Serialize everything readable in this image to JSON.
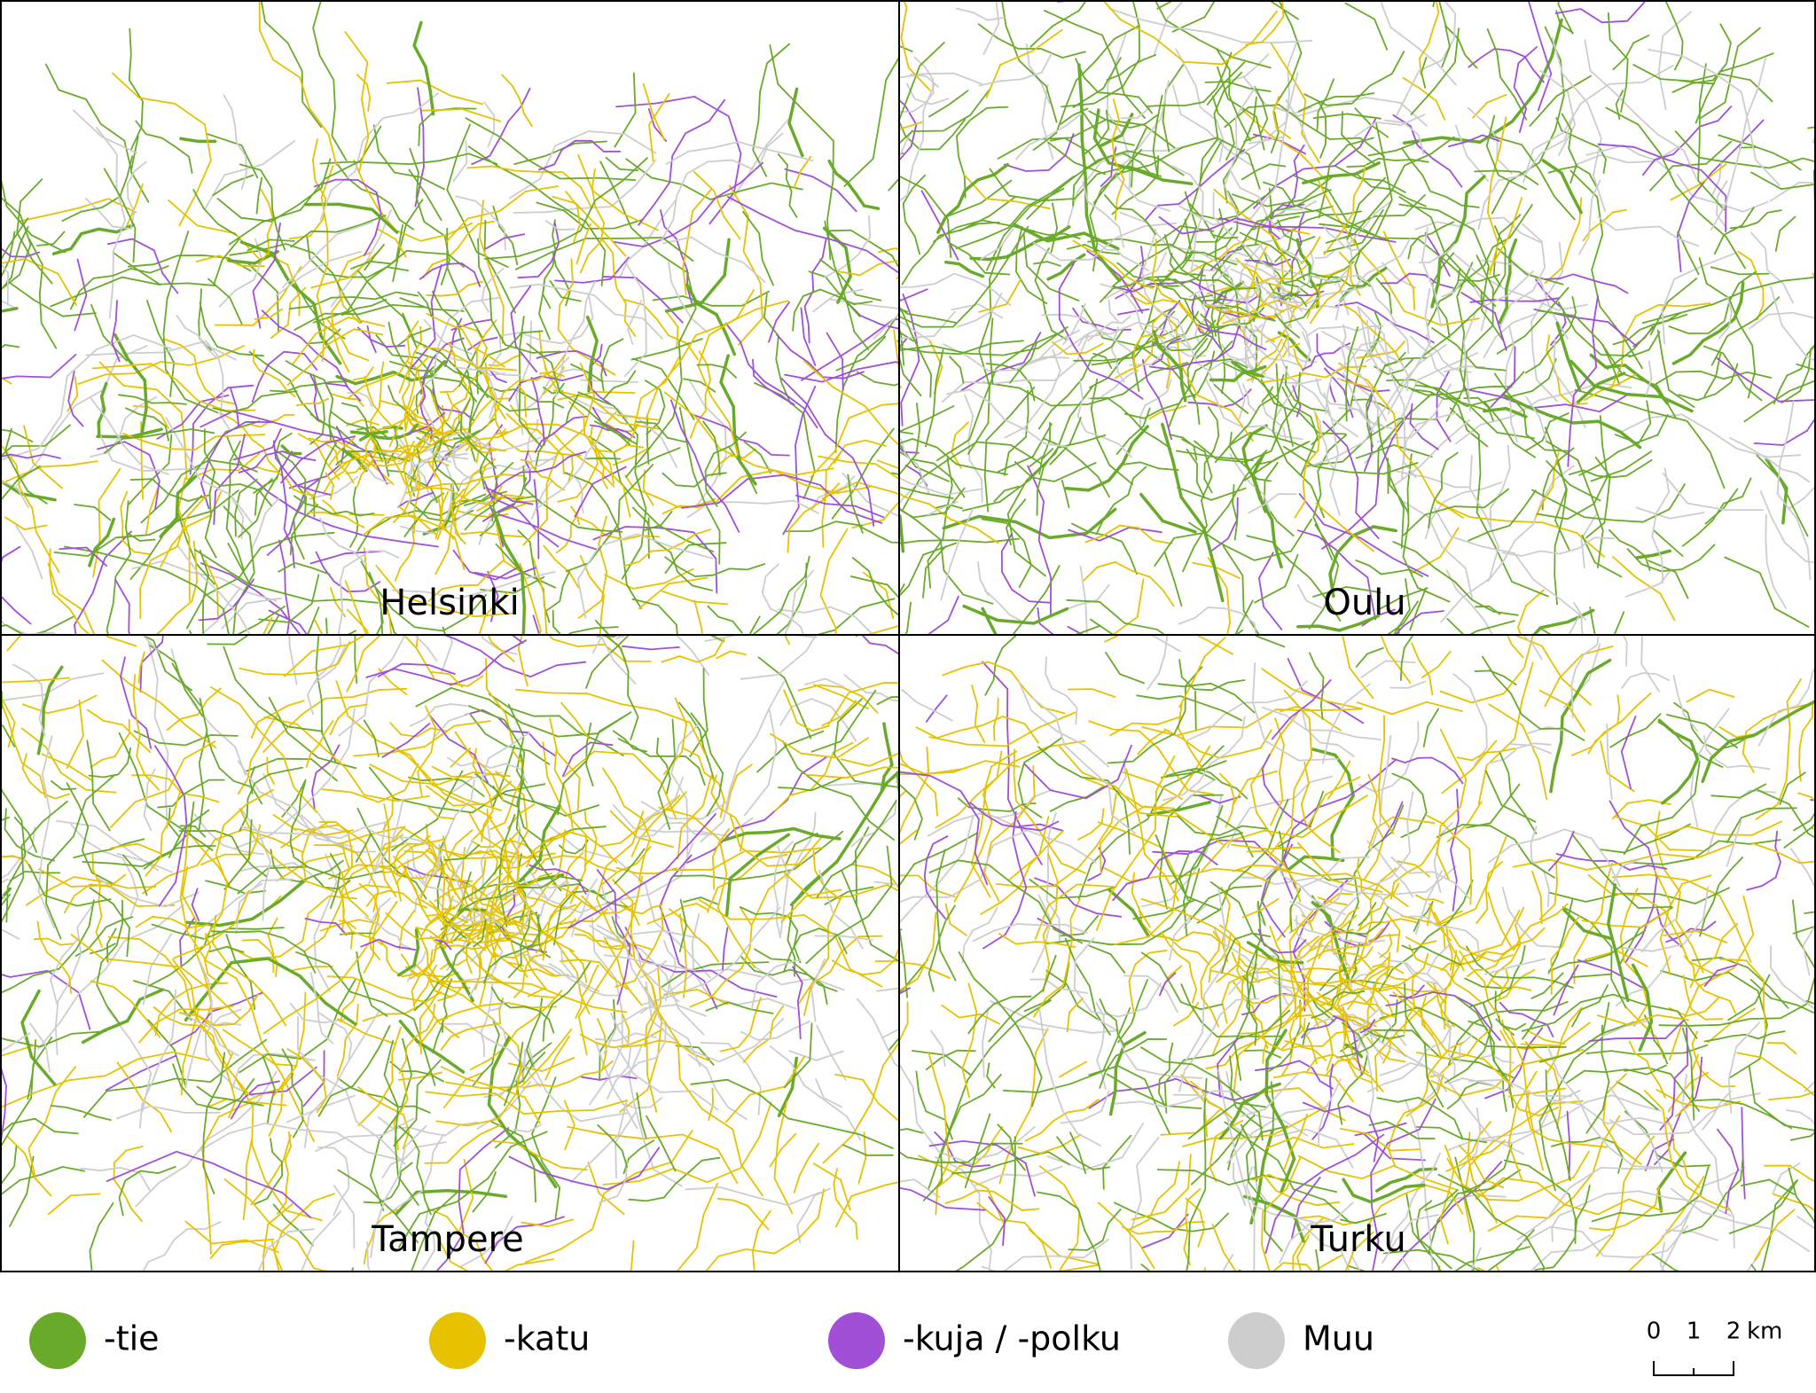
{
  "panels": [
    {
      "label": "Helsinki"
    },
    {
      "label": "Oulu"
    },
    {
      "label": "Tampere"
    },
    {
      "label": "Turku"
    }
  ],
  "legend": [
    {
      "label": "-tie",
      "color": "#6aaa2a"
    },
    {
      "label": "-katu",
      "color": "#e6c200"
    },
    {
      "label": "-kuja / -polku",
      "color": "#a04fd6"
    },
    {
      "label": "Muu",
      "color": "#cdcdcd"
    }
  ],
  "scale_bar": {
    "ticks": [
      "0",
      "1",
      "2"
    ],
    "unit": "km"
  }
}
